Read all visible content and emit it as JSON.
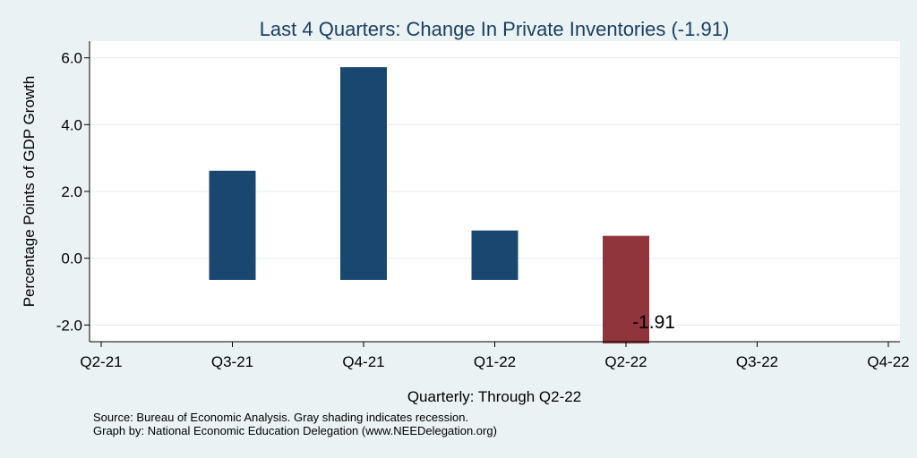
{
  "chart_data": {
    "type": "bar",
    "title": "Last 4 Quarters: Change In Private Inventories (-1.91)",
    "xlabel": "Quarterly: Through Q2-22",
    "ylabel": "Percentage Points of GDP Growth",
    "categories": [
      "Q2-21",
      "Q3-21",
      "Q4-21",
      "Q1-22",
      "Q2-22",
      "Q3-22",
      "Q4-22"
    ],
    "y_ticks": [
      "-2.0",
      "0.0",
      "2.0",
      "4.0",
      "6.0"
    ],
    "ylim": [
      -2.5,
      6.5
    ],
    "bars": [
      {
        "category": "Q3-21",
        "low": -0.65,
        "high": 2.62,
        "color": "#1a4770"
      },
      {
        "category": "Q4-21",
        "low": -0.65,
        "high": 5.72,
        "color": "#1a4770"
      },
      {
        "category": "Q1-22",
        "low": -0.65,
        "high": 0.83,
        "color": "#1a4770"
      },
      {
        "category": "Q2-22",
        "low": -2.55,
        "high": 0.67,
        "color": "#90353b"
      }
    ],
    "annotation": {
      "category": "Q2-22",
      "text": "-1.91",
      "y": -1.91
    },
    "notes": [
      "Source: Bureau of Economic Analysis. Gray shading indicates recession.",
      "Graph by: National Economic Education Delegation (www.NEEDelegation.org)"
    ]
  }
}
